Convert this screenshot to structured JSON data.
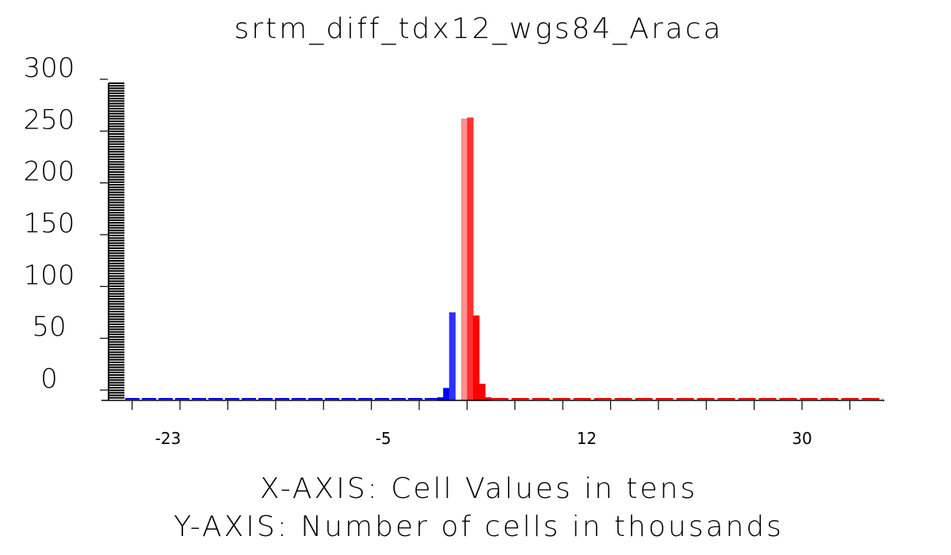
{
  "chart_data": {
    "type": "bar",
    "title": "srtm_diff_tdx12_wgs84_Araca",
    "xlabel": "X-AXIS: Cell Values in tens",
    "ylabel": "Y-AXIS: Number of cells in thousands",
    "xlim": [
      -26,
      42
    ],
    "ylim": [
      -25,
      300
    ],
    "yticks": [
      0,
      50,
      100,
      150,
      200,
      250,
      300
    ],
    "ytick_labels": [
      "0",
      "50",
      "100",
      "150",
      "200",
      "250",
      "300"
    ],
    "xticks": [
      -23,
      -5,
      12,
      30
    ],
    "xtick_labels": [
      "-23",
      "-5",
      "12",
      "30"
    ],
    "grid": false,
    "legend": "none",
    "colors": {
      "negative": "#0000ff",
      "positive": "#ff0000",
      "axis": "#000000"
    },
    "bins": [
      {
        "x": 0.0,
        "value": 12
      },
      {
        "x": 0.5,
        "value": 85
      },
      {
        "x": 1.0,
        "value": 0
      },
      {
        "x": 1.5,
        "value": 272
      },
      {
        "x": 2.0,
        "value": 273
      },
      {
        "x": 2.5,
        "value": 82
      },
      {
        "x": 3.0,
        "value": 16
      },
      {
        "x": 3.5,
        "value": 3
      },
      {
        "x": -0.5,
        "value": 3
      }
    ]
  }
}
